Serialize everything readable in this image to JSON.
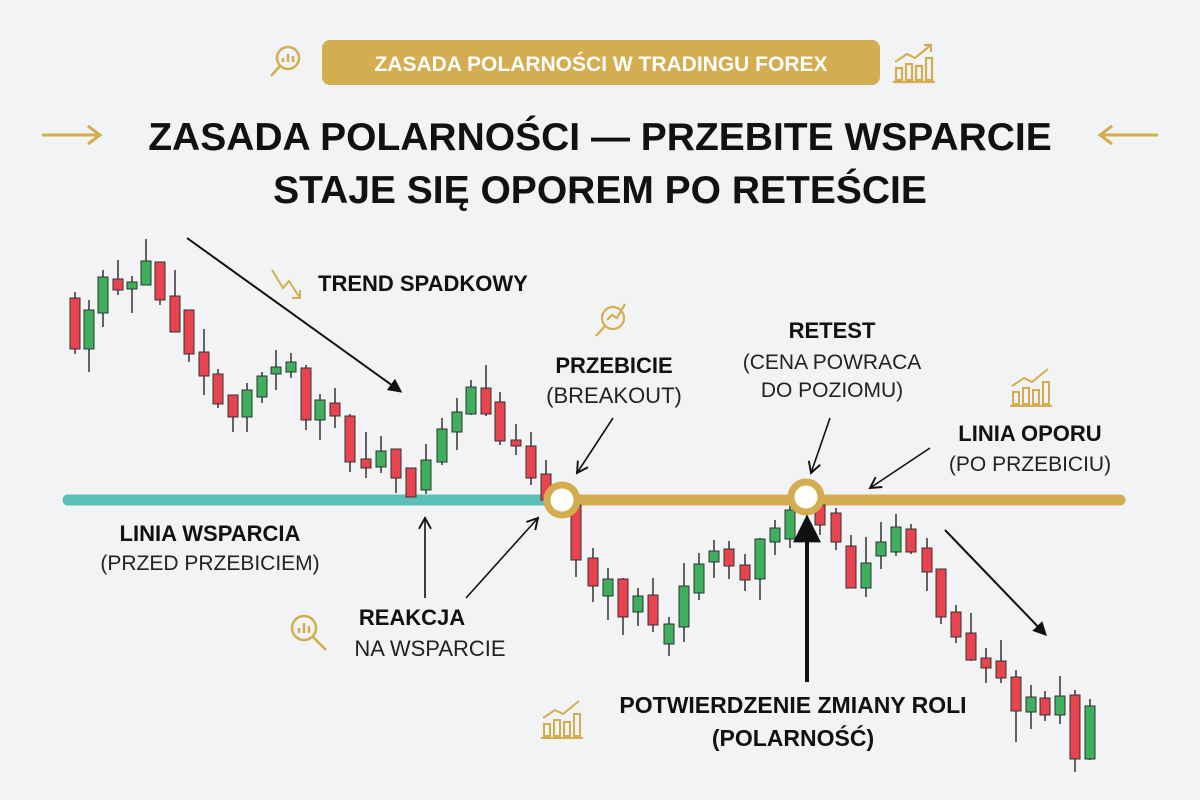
{
  "banner": {
    "label": "ZASADA POLARNOŚCI W TRADINGU FOREX"
  },
  "title": {
    "line1": "ZASADA POLARNOŚCI — PRZEBITE WSPARCIE",
    "line2": "STAJE SIĘ OPOREM PO RETEŚCIE"
  },
  "labels": {
    "trend": "TREND SPADKOWY",
    "breakout_title": "PRZEBICIE",
    "breakout_sub": "(BREAKOUT)",
    "retest_title": "RETEST",
    "retest_sub1": "(CENA POWRACA",
    "retest_sub2": "DO POZIOMU)",
    "resistance_title": "LINIA OPORU",
    "resistance_sub": "(PO PRZEBICIU)",
    "support_title": "LINIA WSPARCIA",
    "support_sub": "(PRZED PRZEBICIEM)",
    "reaction_title": "REAKCJA",
    "reaction_sub": "NA WSPARCIE",
    "confirm_title": "POTWIERDZENIE ZMIANY ROLI",
    "confirm_sub": "(POLARNOŚĆ)"
  },
  "icons": [
    "magnifier-chart-icon",
    "bar-chart-up-icon",
    "zigzag-down-icon"
  ],
  "colors": {
    "background": "#f2f3f5",
    "gold": "#d3ad4f",
    "support_teal": "#5cbfb7",
    "bullish": "#3daf5d",
    "bearish": "#e8434f",
    "text": "#111111"
  }
}
